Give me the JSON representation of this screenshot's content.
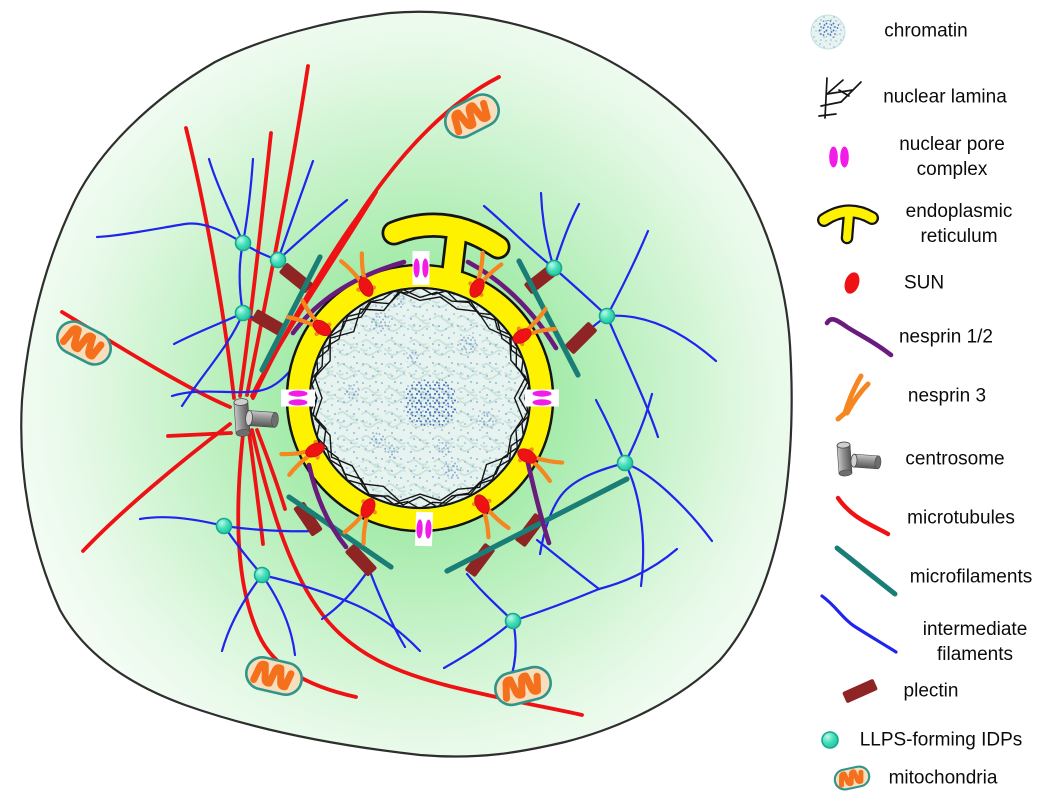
{
  "legend": {
    "items": [
      {
        "icon": "chromatin-icon",
        "label": "chromatin"
      },
      {
        "icon": "nuclear-lamina-icon",
        "label": "nuclear lamina"
      },
      {
        "icon": "nuclear-pore-complex-icon",
        "label": "nuclear pore complex"
      },
      {
        "icon": "endoplasmic-reticulum-icon",
        "label": "endoplasmic reticulum"
      },
      {
        "icon": "sun-icon",
        "label": "SUN"
      },
      {
        "icon": "nesprin-1-2-icon",
        "label": "nesprin 1/2"
      },
      {
        "icon": "nesprin-3-icon",
        "label": "nesprin 3"
      },
      {
        "icon": "centrosome-icon",
        "label": "centrosome"
      },
      {
        "icon": "microtubules-icon",
        "label": "microtubules"
      },
      {
        "icon": "microfilaments-icon",
        "label": "microfilaments"
      },
      {
        "icon": "intermediate-filaments-icon",
        "label": "intermediate filaments"
      },
      {
        "icon": "plectin-icon",
        "label": "plectin"
      },
      {
        "icon": "llps-forming-idps-icon",
        "label": "LLPS-forming IDPs"
      },
      {
        "icon": "mitochondria-icon",
        "label": "mitochondria"
      }
    ]
  },
  "colors": {
    "microtubules": "#EE1214",
    "intermediate_filaments": "#1F24EF",
    "microfilaments": "#1A7E77",
    "nesprin_1_2": "#6B1A7D",
    "nesprin_3": "#F6861F",
    "plectin": "#8E2424",
    "nuclear_pore": "#F21CE8",
    "nuclear_envelope_er": "#FFF200",
    "sun": "#EE1214",
    "llps_idp_fill": "#3FDDB7",
    "llps_idp_rim": "#18A88F",
    "mitochondria_outline": "#2F958B",
    "mitochondria_matrix": "#F7DFBD",
    "mitochondria_cristae": "#F4701D",
    "cytoplasm_green": "#8CE595",
    "chromatin_base": "#E7F3EF",
    "chromatin_dots": "#6F94CF",
    "nucleolus_dots": "#4470BE",
    "lamina": "#141414",
    "cell_outline": "#2E2E2E"
  }
}
